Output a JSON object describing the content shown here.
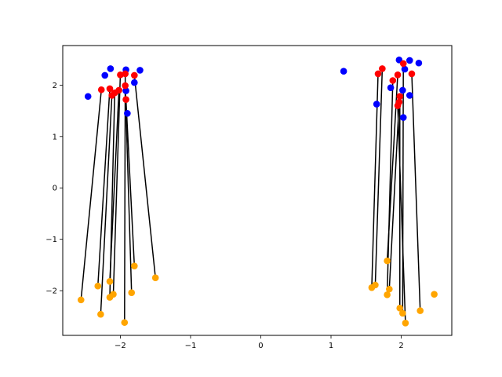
{
  "chart_data": {
    "type": "scatter",
    "title": "",
    "xlabel": "",
    "ylabel": "",
    "xlim": [
      -2.82,
      2.72
    ],
    "ylim": [
      -2.87,
      2.77
    ],
    "grid": false,
    "legend": "none",
    "x_ticks": [
      -2,
      -1,
      0,
      1,
      2
    ],
    "y_ticks": [
      -2,
      -1,
      0,
      1,
      2
    ],
    "x_tick_labels": [
      "−2",
      "−1",
      "0",
      "1",
      "2"
    ],
    "y_tick_labels": [
      "−2",
      "−1",
      "0",
      "1",
      "2"
    ],
    "colors": {
      "blue_series": "#0000ff",
      "red_series": "#ff0000",
      "orange_series": "#ffa500",
      "link_line": "#000000"
    },
    "series": [
      {
        "points": [
          [
            -2.46,
            1.78
          ],
          [
            -2.22,
            2.19
          ],
          [
            -2.14,
            2.32
          ],
          [
            -1.92,
            2.3
          ],
          [
            -1.72,
            2.29
          ],
          [
            -1.8,
            2.05
          ],
          [
            -1.92,
            1.89
          ],
          [
            -1.9,
            1.45
          ],
          [
            1.18,
            2.27
          ],
          [
            1.65,
            1.63
          ],
          [
            1.85,
            1.95
          ],
          [
            1.97,
            2.49
          ],
          [
            2.05,
            2.31
          ],
          [
            2.12,
            2.48
          ],
          [
            2.25,
            2.43
          ],
          [
            2.12,
            1.8
          ],
          [
            2.03,
            1.37
          ],
          [
            2.02,
            1.9
          ]
        ]
      },
      {
        "points": [
          [
            -2.27,
            1.91
          ],
          [
            -2.15,
            1.93
          ],
          [
            -2.12,
            1.8
          ],
          [
            -2.08,
            1.85
          ],
          [
            -2.02,
            1.9
          ],
          [
            -2.0,
            2.2
          ],
          [
            -1.93,
            2.22
          ],
          [
            -1.93,
            1.99
          ],
          [
            -1.92,
            1.72
          ],
          [
            -1.8,
            2.19
          ],
          [
            1.67,
            2.22
          ],
          [
            1.73,
            2.32
          ],
          [
            1.88,
            2.09
          ],
          [
            1.95,
            2.2
          ],
          [
            1.97,
            1.67
          ],
          [
            1.98,
            1.78
          ],
          [
            2.03,
            2.42
          ],
          [
            2.15,
            2.22
          ],
          [
            1.95,
            1.6
          ]
        ]
      },
      {
        "points": [
          [
            -2.56,
            -2.18
          ],
          [
            -2.32,
            -1.91
          ],
          [
            -2.28,
            -2.46
          ],
          [
            -2.15,
            -2.13
          ],
          [
            -2.15,
            -1.82
          ],
          [
            -2.1,
            -2.07
          ],
          [
            -1.94,
            -2.62
          ],
          [
            -1.84,
            -2.04
          ],
          [
            -1.8,
            -1.52
          ],
          [
            -1.5,
            -1.75
          ],
          [
            1.58,
            -1.94
          ],
          [
            1.63,
            -1.89
          ],
          [
            1.8,
            -2.08
          ],
          [
            1.8,
            -1.42
          ],
          [
            1.83,
            -1.97
          ],
          [
            1.98,
            -2.34
          ],
          [
            2.02,
            -2.44
          ],
          [
            2.06,
            -2.63
          ],
          [
            2.27,
            -2.39
          ],
          [
            2.47,
            -2.07
          ]
        ]
      }
    ],
    "links": [
      [
        [
          -2.56,
          -2.18
        ],
        [
          -2.27,
          1.91
        ]
      ],
      [
        [
          -2.32,
          -1.91
        ],
        [
          -2.15,
          1.93
        ]
      ],
      [
        [
          -2.28,
          -2.46
        ],
        [
          -2.12,
          1.8
        ]
      ],
      [
        [
          -2.15,
          -2.13
        ],
        [
          -2.08,
          1.85
        ]
      ],
      [
        [
          -2.15,
          -1.82
        ],
        [
          -2.02,
          1.9
        ]
      ],
      [
        [
          -2.1,
          -2.07
        ],
        [
          -2.0,
          2.2
        ]
      ],
      [
        [
          -1.94,
          -2.62
        ],
        [
          -1.93,
          2.22
        ]
      ],
      [
        [
          -1.84,
          -2.04
        ],
        [
          -1.93,
          1.99
        ]
      ],
      [
        [
          -1.8,
          -1.52
        ],
        [
          -1.92,
          1.72
        ]
      ],
      [
        [
          -1.5,
          -1.75
        ],
        [
          -1.8,
          2.19
        ]
      ],
      [
        [
          1.58,
          -1.94
        ],
        [
          1.67,
          2.22
        ]
      ],
      [
        [
          1.63,
          -1.89
        ],
        [
          1.73,
          2.32
        ]
      ],
      [
        [
          1.8,
          -2.08
        ],
        [
          1.88,
          2.09
        ]
      ],
      [
        [
          1.8,
          -1.42
        ],
        [
          1.95,
          2.2
        ]
      ],
      [
        [
          1.83,
          -1.97
        ],
        [
          1.97,
          1.67
        ]
      ],
      [
        [
          1.98,
          -2.34
        ],
        [
          1.98,
          1.78
        ]
      ],
      [
        [
          2.02,
          -2.44
        ],
        [
          2.03,
          2.42
        ]
      ],
      [
        [
          2.06,
          -2.63
        ],
        [
          1.95,
          1.6
        ]
      ],
      [
        [
          2.27,
          -2.39
        ],
        [
          2.15,
          2.22
        ]
      ]
    ]
  }
}
